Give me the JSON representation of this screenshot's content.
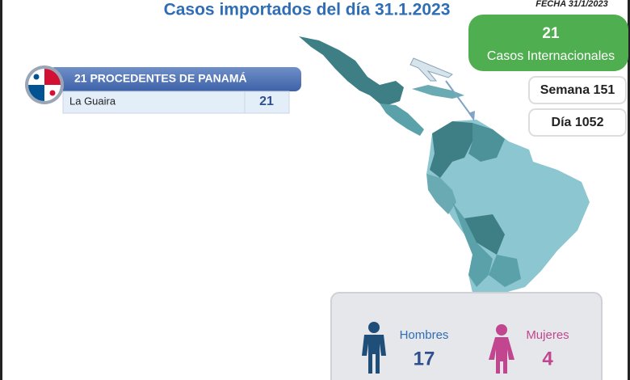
{
  "header": {
    "title": "Casos importados del día 31.1.2023",
    "date": "FECHA 31/1/2023"
  },
  "summary": {
    "count": 21,
    "label": "Casos Internacionales"
  },
  "week": "Semana 151",
  "day": "Día 1052",
  "origin": {
    "title": "21 PROCEDENTES DE PANAMÁ",
    "rows": [
      [
        "La Guaira",
        21
      ]
    ]
  },
  "gender": {
    "men": {
      "label": "Hombres",
      "value": 17
    },
    "women": {
      "label": "Mujeres",
      "value": 4
    }
  }
}
